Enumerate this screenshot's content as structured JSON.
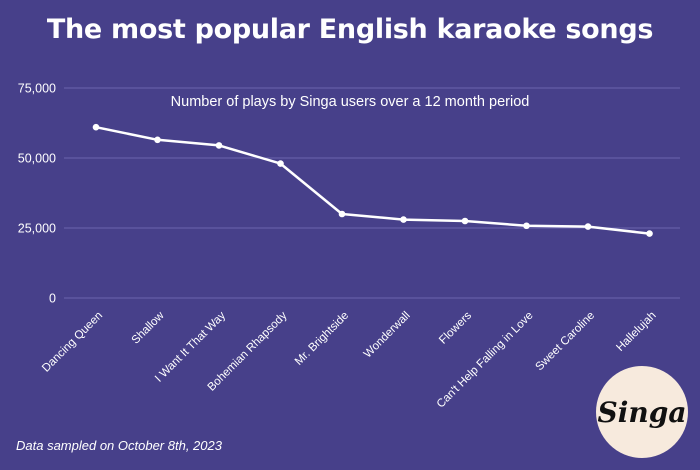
{
  "colors": {
    "background": "#47408a",
    "line": "#ffffff",
    "grid": "#6b64ad",
    "text": "#ffffff",
    "logo_bg": "#f7eadd"
  },
  "chart_data": {
    "type": "line",
    "title": "The most popular English karaoke songs",
    "subtitle": "Number of plays by Singa users over a 12 month period",
    "categories": [
      "Dancing Queen",
      "Shallow",
      "I Want It That Way",
      "Bohemian Rhapsody",
      "Mr. Brightside",
      "Wonderwall",
      "Flowers",
      "Can't Help Falling in Love",
      "Sweet Caroline",
      "Hallelujah"
    ],
    "series": [
      {
        "values": [
          61000,
          56500,
          54500,
          48000,
          30000,
          28000,
          27500,
          25800,
          25500,
          23000
        ]
      }
    ],
    "yticks": [
      "0",
      "25,000",
      "50,000",
      "75,000"
    ],
    "ylim": [
      0,
      75000
    ],
    "grid": true,
    "legend": "none"
  },
  "footnote": "Data sampled on October 8th, 2023",
  "logo": {
    "text": "Singa",
    "icon": "singa-logo"
  }
}
